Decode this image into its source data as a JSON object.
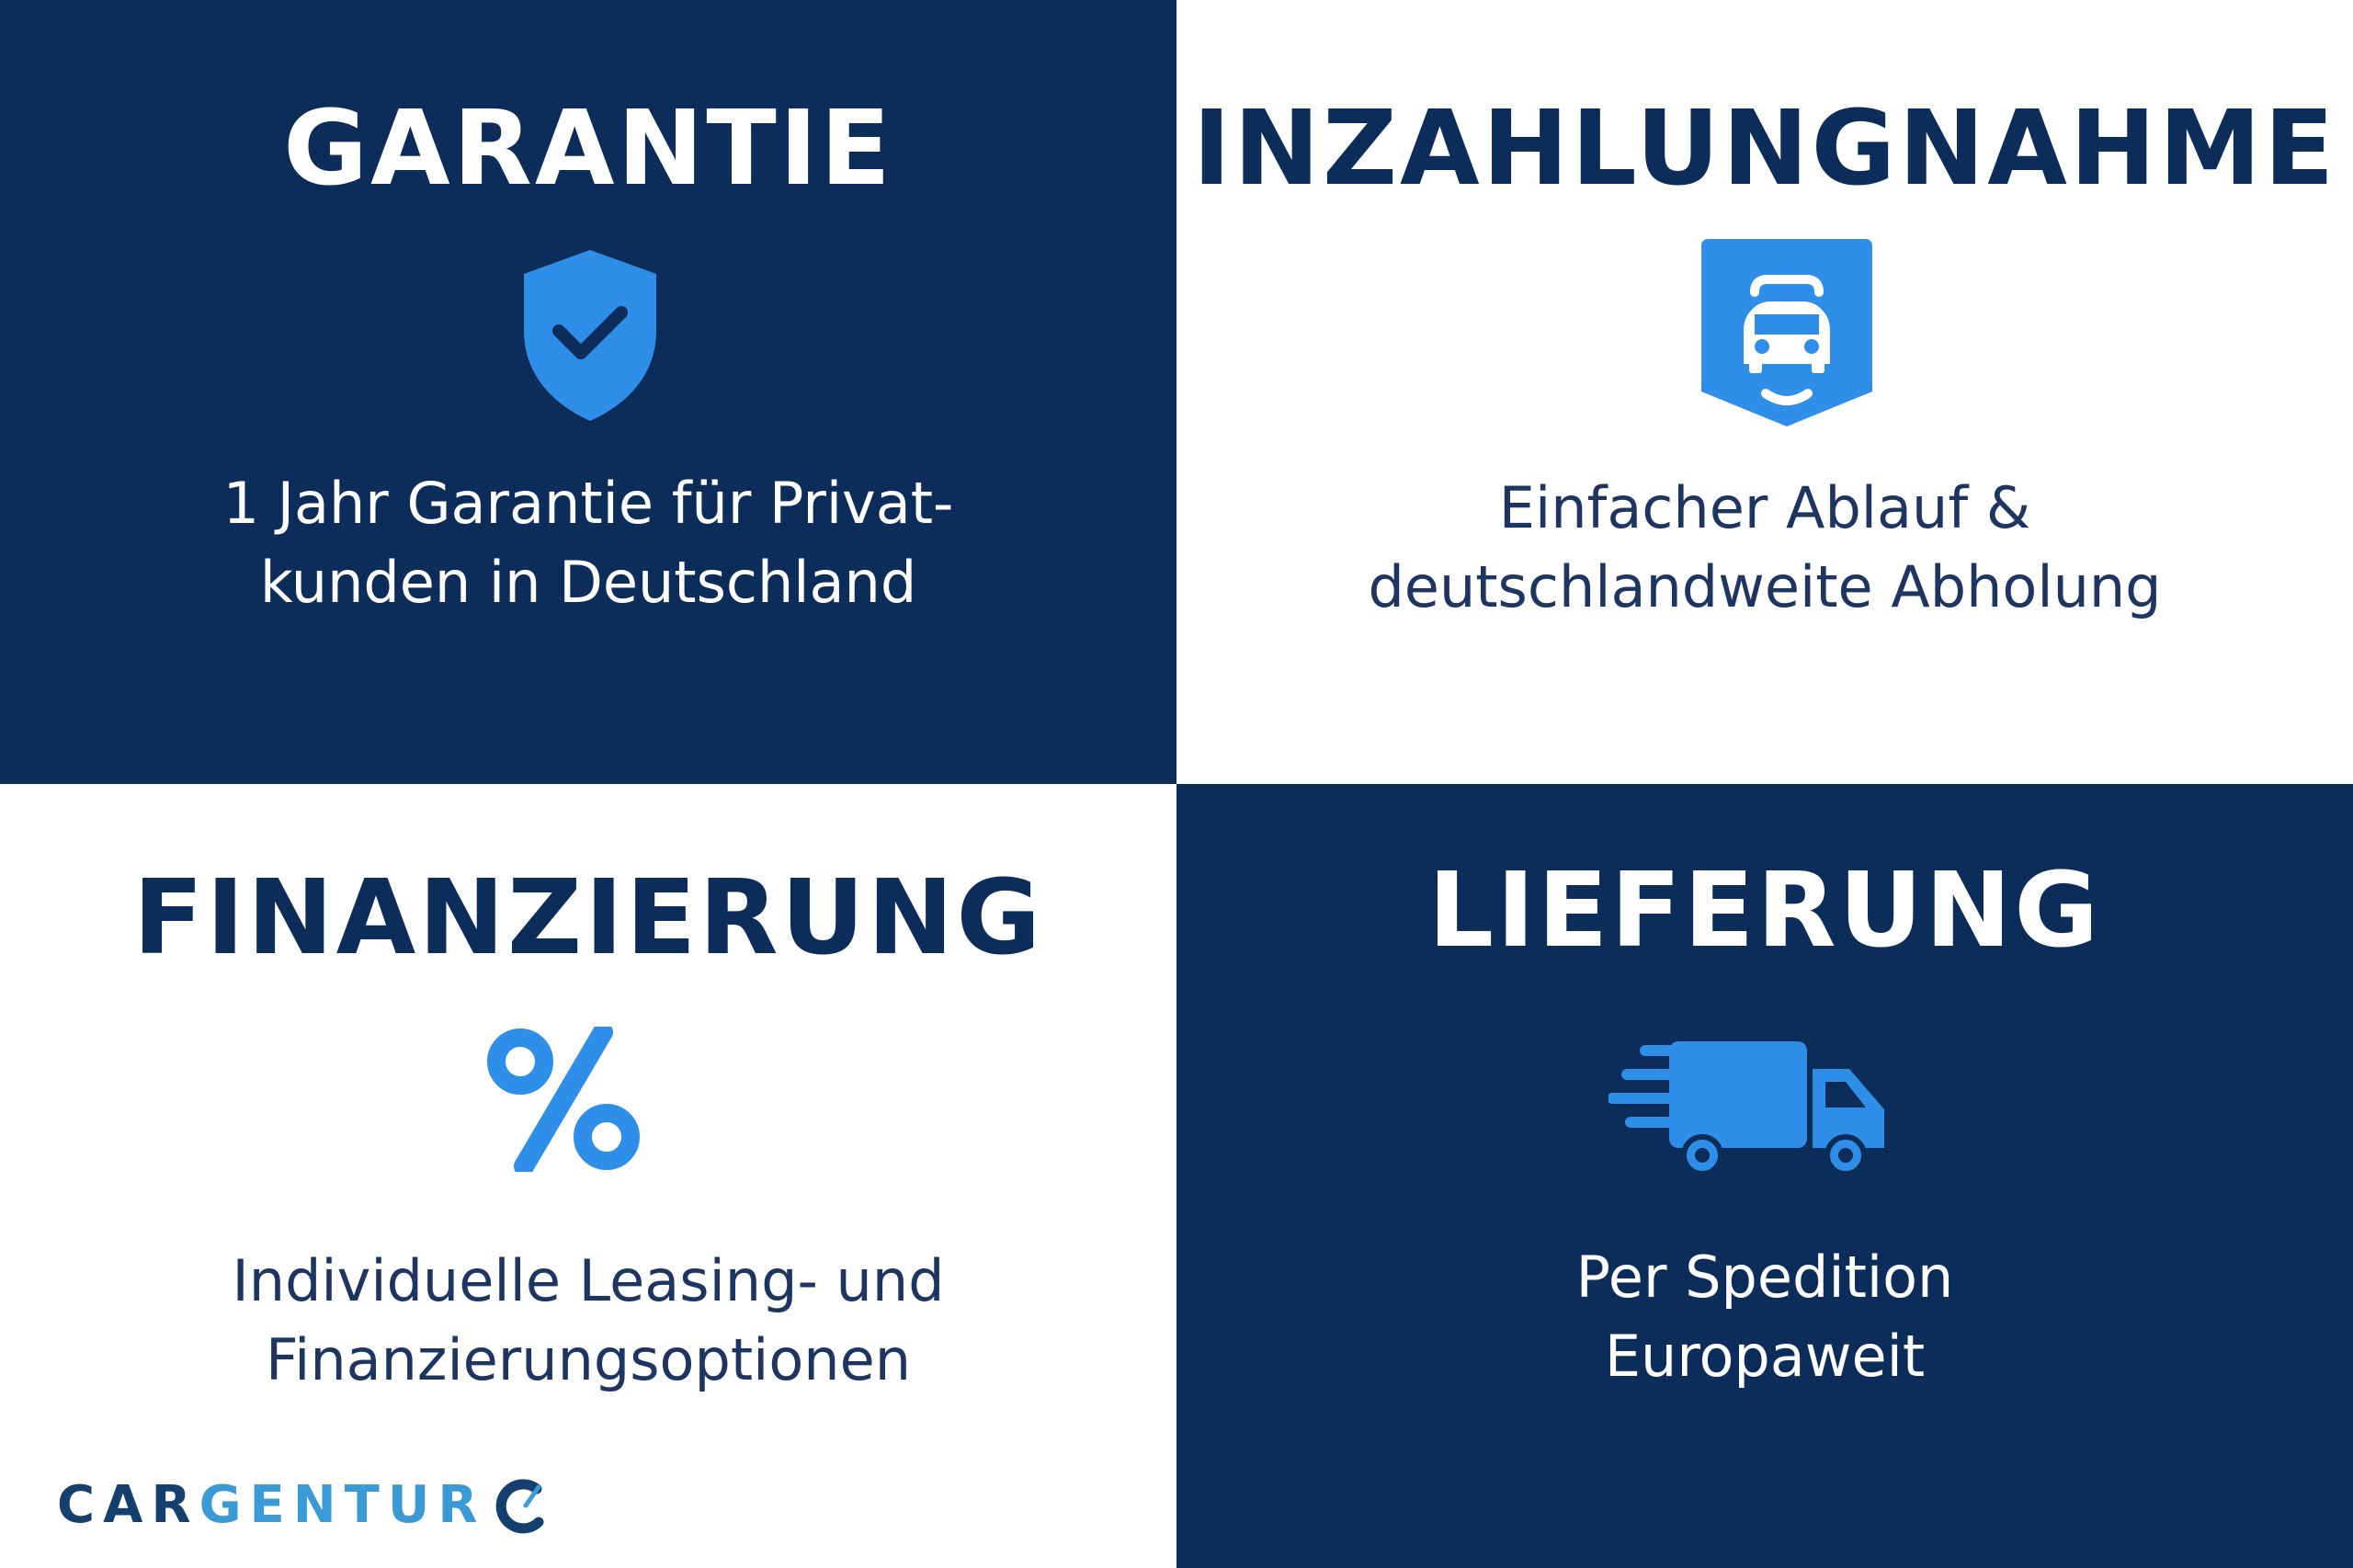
{
  "colors": {
    "navy": "#0c2c59",
    "accent_blue": "#2f8fe8",
    "white": "#ffffff"
  },
  "panels": [
    {
      "title": "GARANTIE",
      "icon": "shield-check-icon",
      "lines": [
        "1 Jahr Garantie für Privat-",
        "kunden in Deutschland"
      ]
    },
    {
      "title": "INZAHLUNGNAHME",
      "icon": "car-trade-in-icon",
      "lines": [
        "Einfacher Ablauf &",
        "deutschlandweite Abholung"
      ]
    },
    {
      "title": "FINANZIERUNG",
      "icon": "percent-icon",
      "lines": [
        "Individuelle Leasing- und",
        "Finanzierungsoptionen"
      ]
    },
    {
      "title": "LIEFERUNG",
      "icon": "delivery-truck-icon",
      "lines": [
        "Per Spedition",
        "Europaweit"
      ]
    }
  ],
  "logo": {
    "part1": "CAR",
    "part2": "GENTUR"
  }
}
